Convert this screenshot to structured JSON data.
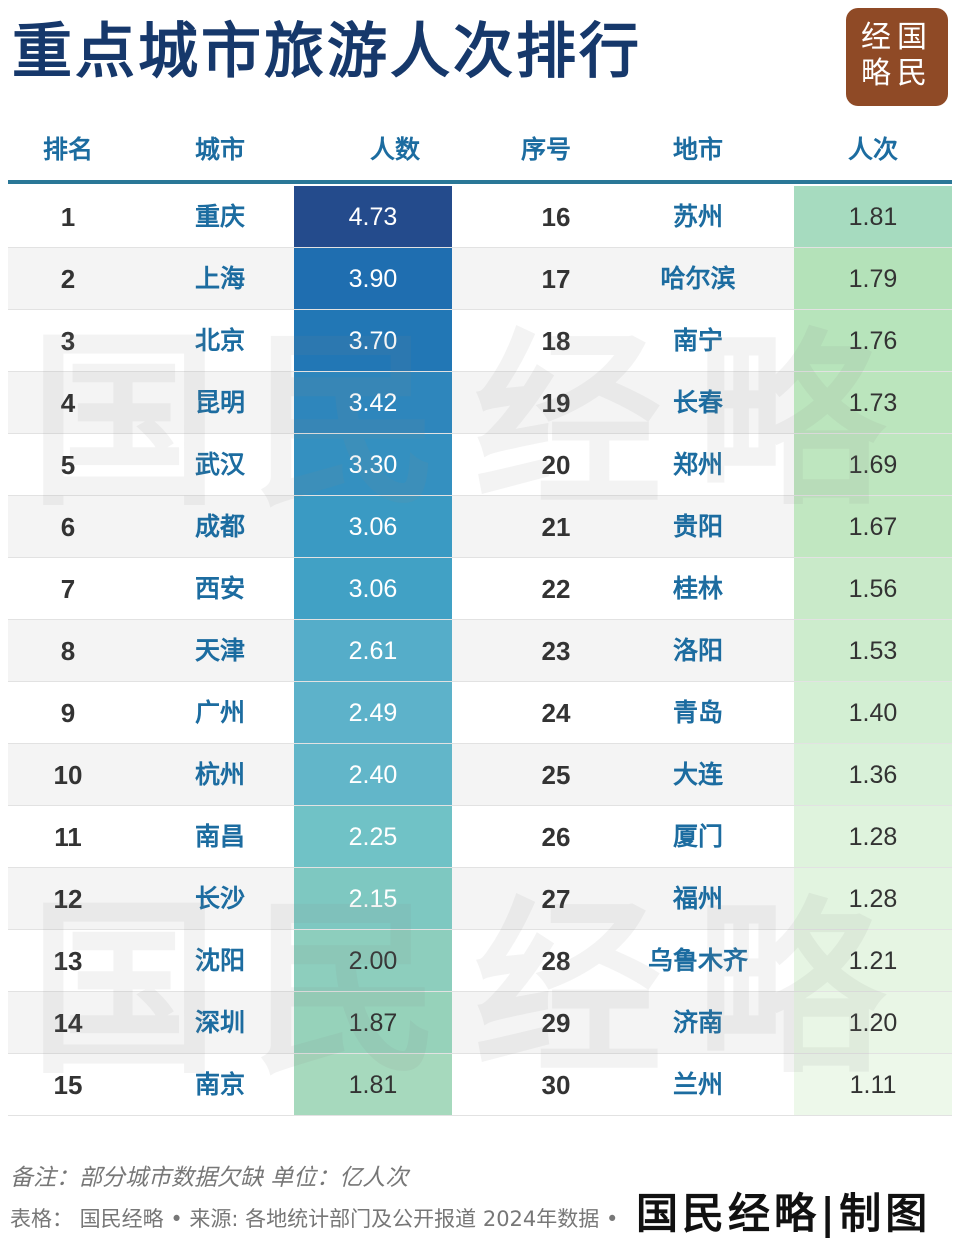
{
  "title": "重点城市旅游人次排行",
  "logo": {
    "line1": "经国",
    "line2": "略民"
  },
  "headers": {
    "rank": "排名",
    "city": "城市",
    "value": "人数",
    "rank2": "序号",
    "city2": "地市",
    "value2": "人次"
  },
  "left_rows": [
    {
      "rank": "1",
      "city": "重庆",
      "value": "4.73"
    },
    {
      "rank": "2",
      "city": "上海",
      "value": "3.90"
    },
    {
      "rank": "3",
      "city": "北京",
      "value": "3.70"
    },
    {
      "rank": "4",
      "city": "昆明",
      "value": "3.42"
    },
    {
      "rank": "5",
      "city": "武汉",
      "value": "3.30"
    },
    {
      "rank": "6",
      "city": "成都",
      "value": "3.06"
    },
    {
      "rank": "7",
      "city": "西安",
      "value": "3.06"
    },
    {
      "rank": "8",
      "city": "天津",
      "value": "2.61"
    },
    {
      "rank": "9",
      "city": "广州",
      "value": "2.49"
    },
    {
      "rank": "10",
      "city": "杭州",
      "value": "2.40"
    },
    {
      "rank": "11",
      "city": "南昌",
      "value": "2.25"
    },
    {
      "rank": "12",
      "city": "长沙",
      "value": "2.15"
    },
    {
      "rank": "13",
      "city": "沈阳",
      "value": "2.00"
    },
    {
      "rank": "14",
      "city": "深圳",
      "value": "1.87"
    },
    {
      "rank": "15",
      "city": "南京",
      "value": "1.81"
    }
  ],
  "right_rows": [
    {
      "rank": "16",
      "city": "苏州",
      "value": "1.81"
    },
    {
      "rank": "17",
      "city": "哈尔滨",
      "value": "1.79"
    },
    {
      "rank": "18",
      "city": "南宁",
      "value": "1.76"
    },
    {
      "rank": "19",
      "city": "长春",
      "value": "1.73"
    },
    {
      "rank": "20",
      "city": "郑州",
      "value": "1.69"
    },
    {
      "rank": "21",
      "city": "贵阳",
      "value": "1.67"
    },
    {
      "rank": "22",
      "city": "桂林",
      "value": "1.56"
    },
    {
      "rank": "23",
      "city": "洛阳",
      "value": "1.53"
    },
    {
      "rank": "24",
      "city": "青岛",
      "value": "1.40"
    },
    {
      "rank": "25",
      "city": "大连",
      "value": "1.36"
    },
    {
      "rank": "26",
      "city": "厦门",
      "value": "1.28"
    },
    {
      "rank": "27",
      "city": "福州",
      "value": "1.28"
    },
    {
      "rank": "28",
      "city": "乌鲁木齐",
      "value": "1.21"
    },
    {
      "rank": "29",
      "city": "济南",
      "value": "1.20"
    },
    {
      "rank": "30",
      "city": "兰州",
      "value": "1.11"
    }
  ],
  "left_colors": [
    "#244b8c",
    "#1f6eb0",
    "#2277b5",
    "#2e86bc",
    "#3490c0",
    "#3a9ac3",
    "#41a1c5",
    "#55adc9",
    "#5db2ca",
    "#62b6c9",
    "#70c2c6",
    "#7ec8c1",
    "#8dcebd",
    "#96d2ba",
    "#a6d9bd"
  ],
  "right_colors": [
    "#a6dbbf",
    "#b4e2b9",
    "#b7e4bb",
    "#bbe5bd",
    "#bee6bf",
    "#c1e7c1",
    "#c9eac9",
    "#cdeccd",
    "#d3efd3",
    "#d9f1d9",
    "#dff3dd",
    "#e2f4e0",
    "#e6f5e3",
    "#e9f6e6",
    "#edf8ea"
  ],
  "watermark": "国民经略",
  "note": "备注：部分城市数据欠缺 单位：亿人次",
  "source": "表格：  国民经略 • 来源: 各地统计部门及公开报道 2024年数据 •",
  "brand": "国民经略|制图"
}
